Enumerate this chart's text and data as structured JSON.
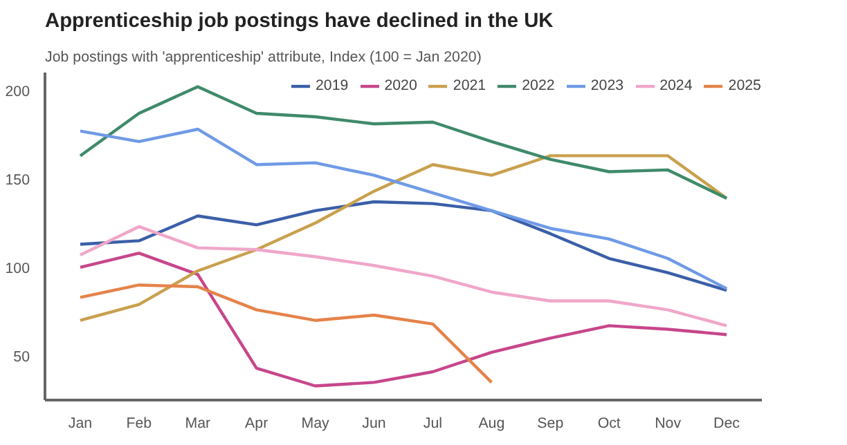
{
  "chart_data": {
    "type": "line",
    "title": "Apprenticeship job postings have declined in the UK",
    "subtitle": "Job postings with 'apprenticeship' attribute, Index (100 = Jan 2020)",
    "categories": [
      "Jan",
      "Feb",
      "Mar",
      "Apr",
      "May",
      "Jun",
      "Jul",
      "Aug",
      "Sep",
      "Oct",
      "Nov",
      "Dec"
    ],
    "series": [
      {
        "name": "2019",
        "color": "#3b5fa8",
        "values": [
          113,
          115,
          129,
          124,
          132,
          137,
          136,
          132,
          119,
          105,
          97,
          87
        ]
      },
      {
        "name": "2020",
        "color": "#c7468a",
        "values": [
          100,
          108,
          96,
          43,
          33,
          35,
          41,
          52,
          60,
          67,
          65,
          62
        ]
      },
      {
        "name": "2021",
        "color": "#c9a04e",
        "values": [
          70,
          79,
          98,
          110,
          125,
          143,
          158,
          152,
          163,
          163,
          163,
          139
        ]
      },
      {
        "name": "2022",
        "color": "#3f8a6a",
        "values": [
          163,
          187,
          202,
          187,
          185,
          181,
          182,
          171,
          161,
          154,
          155,
          139
        ]
      },
      {
        "name": "2023",
        "color": "#6f9ae6",
        "values": [
          177,
          171,
          178,
          158,
          159,
          152,
          142,
          132,
          122,
          116,
          105,
          88
        ]
      },
      {
        "name": "2024",
        "color": "#f0a6c9",
        "values": [
          107,
          123,
          111,
          110,
          106,
          101,
          95,
          86,
          81,
          81,
          76,
          67
        ]
      },
      {
        "name": "2025",
        "color": "#e5834a",
        "values": [
          83,
          90,
          89,
          76,
          70,
          73,
          68,
          35,
          null,
          null,
          null,
          null
        ]
      }
    ],
    "ylim": [
      25,
      210
    ],
    "yticks": [
      50,
      100,
      150,
      200
    ],
    "grid": false,
    "legend": "top right",
    "marker": "none",
    "line_style": "solid"
  }
}
